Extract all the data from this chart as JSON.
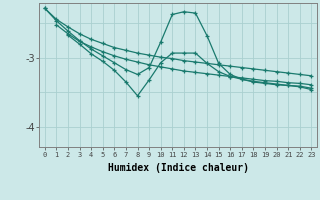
{
  "bg_color": "#cce8e8",
  "line_color": "#1a7a6e",
  "grid_color": "#aad0d0",
  "xlabel": "Humidex (Indice chaleur)",
  "xlabel_fontsize": 7,
  "yticks": [
    -4,
    -3
  ],
  "xlim": [
    -0.5,
    23.5
  ],
  "ylim": [
    -4.3,
    -2.2
  ],
  "lines": [
    {
      "x": [
        0,
        1,
        2,
        3,
        4,
        5,
        6,
        7,
        8,
        9,
        10,
        11,
        12,
        13,
        14,
        15,
        16,
        17,
        18,
        19,
        20,
        21,
        22,
        23
      ],
      "y": [
        -2.28,
        -2.44,
        -2.55,
        -2.65,
        -2.73,
        -2.79,
        -2.85,
        -2.89,
        -2.93,
        -2.96,
        -2.99,
        -3.01,
        -3.04,
        -3.06,
        -3.08,
        -3.1,
        -3.12,
        -3.14,
        -3.16,
        -3.18,
        -3.2,
        -3.22,
        -3.24,
        -3.26
      ]
    },
    {
      "x": [
        1,
        2,
        3,
        4,
        5,
        6,
        7,
        8,
        9,
        10,
        11,
        12,
        13,
        14,
        15,
        16,
        17,
        18,
        19,
        20,
        21,
        22,
        23
      ],
      "y": [
        -2.52,
        -2.65,
        -2.76,
        -2.84,
        -2.91,
        -2.97,
        -3.02,
        -3.06,
        -3.1,
        -3.13,
        -3.16,
        -3.19,
        -3.21,
        -3.23,
        -3.25,
        -3.27,
        -3.29,
        -3.31,
        -3.33,
        -3.34,
        -3.36,
        -3.37,
        -3.39
      ]
    },
    {
      "x": [
        0,
        1,
        2,
        3,
        4,
        5,
        6,
        7,
        8,
        9,
        10,
        11,
        12,
        13,
        14,
        15,
        16,
        17,
        18,
        19,
        20,
        21,
        22,
        23
      ],
      "y": [
        -2.28,
        -2.46,
        -2.61,
        -2.75,
        -2.87,
        -2.97,
        -3.07,
        -3.17,
        -3.24,
        -3.14,
        -2.77,
        -2.37,
        -2.33,
        -2.35,
        -2.68,
        -3.08,
        -3.24,
        -3.31,
        -3.35,
        -3.37,
        -3.39,
        -3.4,
        -3.41,
        -3.44
      ]
    },
    {
      "x": [
        2,
        3,
        4,
        5,
        6,
        7,
        8,
        9,
        10,
        11,
        12,
        13,
        14,
        15,
        16,
        17,
        18,
        19,
        20,
        21,
        22,
        23
      ],
      "y": [
        -2.67,
        -2.8,
        -2.94,
        -3.05,
        -3.18,
        -3.35,
        -3.55,
        -3.32,
        -3.07,
        -2.93,
        -2.93,
        -2.93,
        -3.08,
        -3.2,
        -3.27,
        -3.31,
        -3.34,
        -3.36,
        -3.38,
        -3.4,
        -3.42,
        -3.46
      ]
    }
  ]
}
